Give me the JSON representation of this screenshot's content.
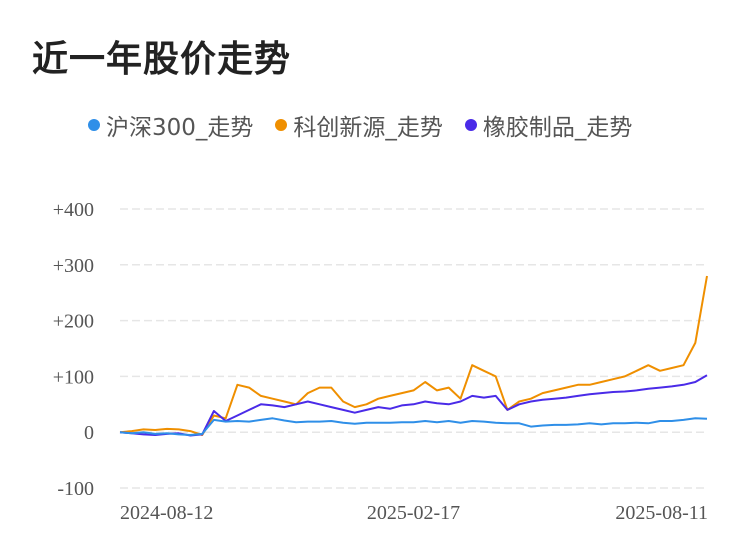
{
  "page": {
    "title": "近一年股价走势"
  },
  "colors": {
    "hs300": "#2f8fe8",
    "kechuang": "#ef8f00",
    "xiangjiao": "#4a2be8",
    "grid": "#e6e6e6"
  },
  "chart_data": {
    "type": "line",
    "title": "近一年股价走势",
    "xlabel": "",
    "ylabel": "",
    "ylim": [
      -100,
      400
    ],
    "yticks": [
      400,
      300,
      200,
      100,
      0,
      -100
    ],
    "ytick_labels": [
      "+400",
      "+300",
      "+200",
      "+100",
      "0",
      "-100"
    ],
    "xtick_labels": [
      "2024-08-12",
      "2025-02-17",
      "2025-08-11"
    ],
    "legend_position": "top",
    "grid": true,
    "x": [
      0,
      2,
      4,
      6,
      8,
      10,
      12,
      14,
      16,
      18,
      20,
      22,
      24,
      26,
      28,
      30,
      32,
      34,
      36,
      38,
      40,
      42,
      44,
      46,
      48,
      50,
      52,
      54,
      56,
      58,
      60,
      62,
      64,
      66,
      68,
      70,
      72,
      74,
      76,
      78,
      80,
      82,
      84,
      86,
      88,
      90,
      92,
      94,
      96,
      98,
      100
    ],
    "series": [
      {
        "name": "沪深300_走势",
        "color": "#2f8fe8",
        "values": [
          0,
          -2,
          0,
          -3,
          -2,
          -4,
          -5,
          -3,
          22,
          19,
          20,
          19,
          22,
          25,
          21,
          18,
          19,
          19,
          20,
          17,
          15,
          17,
          17,
          17,
          18,
          18,
          20,
          18,
          20,
          17,
          20,
          19,
          17,
          16,
          16,
          10,
          12,
          13,
          13,
          14,
          16,
          14,
          16,
          16,
          17,
          16,
          20,
          20,
          22,
          25,
          24
        ]
      },
      {
        "name": "科创新源_走势",
        "color": "#ef8f00",
        "values": [
          0,
          2,
          5,
          4,
          6,
          5,
          2,
          -5,
          30,
          25,
          85,
          80,
          65,
          60,
          55,
          50,
          70,
          80,
          80,
          55,
          45,
          50,
          60,
          65,
          70,
          75,
          90,
          75,
          80,
          60,
          120,
          110,
          100,
          40,
          55,
          60,
          70,
          75,
          80,
          85,
          85,
          90,
          95,
          100,
          110,
          120,
          110,
          115,
          120,
          160,
          280
        ]
      },
      {
        "name": "橡胶制品_走势",
        "color": "#4a2be8",
        "values": [
          0,
          -2,
          -4,
          -5,
          -3,
          -2,
          -6,
          -4,
          38,
          20,
          30,
          40,
          50,
          48,
          45,
          50,
          55,
          50,
          45,
          40,
          35,
          40,
          45,
          42,
          48,
          50,
          55,
          52,
          50,
          55,
          65,
          62,
          65,
          40,
          50,
          55,
          58,
          60,
          62,
          65,
          68,
          70,
          72,
          73,
          75,
          78,
          80,
          82,
          85,
          90,
          102
        ]
      }
    ]
  }
}
